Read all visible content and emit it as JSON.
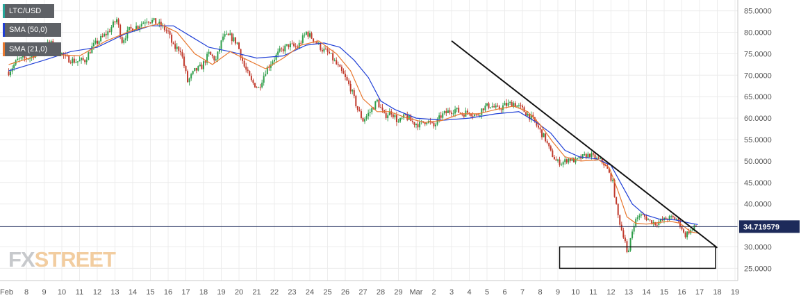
{
  "chart_data": {
    "type": "candlestick",
    "symbol": "LTC/USD",
    "legend": [
      {
        "label": "LTC/USD",
        "color": "#26a69a"
      },
      {
        "label": "SMA (50,0)",
        "color": "#1f3fd6"
      },
      {
        "label": "SMA (21,0)",
        "color": "#e8772e"
      }
    ],
    "y_ticks": [
      "85.0000",
      "80.0000",
      "75.0000",
      "70.0000",
      "65.0000",
      "60.0000",
      "55.0000",
      "50.0000",
      "45.0000",
      "40.0000",
      "30.0000",
      "25.0000"
    ],
    "ylim": [
      22.5,
      87.5
    ],
    "x_ticks": [
      "Feb",
      "8",
      "9",
      "10",
      "11",
      "12",
      "13",
      "14",
      "15",
      "16",
      "17",
      "18",
      "19",
      "20",
      "21",
      "22",
      "23",
      "24",
      "25",
      "26",
      "27",
      "28",
      "29",
      "Mar",
      "2",
      "3",
      "4",
      "5",
      "6",
      "7",
      "8",
      "9",
      "10",
      "11",
      "12",
      "13",
      "14",
      "15",
      "16",
      "17",
      "18",
      "19"
    ],
    "current_price": {
      "label": "34.719579",
      "value": 34.72
    },
    "price_path": [
      [
        0,
        70.8
      ],
      [
        0.5,
        73.5
      ],
      [
        1.2,
        74.2
      ],
      [
        1.8,
        76.0
      ],
      [
        2.3,
        77.5
      ],
      [
        2.7,
        76.5
      ],
      [
        3.2,
        74.0
      ],
      [
        3.8,
        73.2
      ],
      [
        4.3,
        73.5
      ],
      [
        4.7,
        76.5
      ],
      [
        5.2,
        78.5
      ],
      [
        5.6,
        80.0
      ],
      [
        6.1,
        83.0
      ],
      [
        6.4,
        78.0
      ],
      [
        6.8,
        80.5
      ],
      [
        7.3,
        81.5
      ],
      [
        7.8,
        83.0
      ],
      [
        8.2,
        82.5
      ],
      [
        8.6,
        81.5
      ],
      [
        9.0,
        80.0
      ],
      [
        9.3,
        76.5
      ],
      [
        9.7,
        76.0
      ],
      [
        10.1,
        68.5
      ],
      [
        10.5,
        71.0
      ],
      [
        10.9,
        72.0
      ],
      [
        11.3,
        75.0
      ],
      [
        11.7,
        73.5
      ],
      [
        12.1,
        79.0
      ],
      [
        12.5,
        79.0
      ],
      [
        12.9,
        77.5
      ],
      [
        13.3,
        72.0
      ],
      [
        13.7,
        68.5
      ],
      [
        14.1,
        67.0
      ],
      [
        14.5,
        71.0
      ],
      [
        14.9,
        73.5
      ],
      [
        15.3,
        75.5
      ],
      [
        15.8,
        77.0
      ],
      [
        16.3,
        76.5
      ],
      [
        16.8,
        80.0
      ],
      [
        17.3,
        78.0
      ],
      [
        17.7,
        76.0
      ],
      [
        18.1,
        75.0
      ],
      [
        18.5,
        72.5
      ],
      [
        18.9,
        70.0
      ],
      [
        19.3,
        67.0
      ],
      [
        19.7,
        62.0
      ],
      [
        20.0,
        59.5
      ],
      [
        20.4,
        61.5
      ],
      [
        20.8,
        64.0
      ],
      [
        21.2,
        60.5
      ],
      [
        21.6,
        61.5
      ],
      [
        22.0,
        59.0
      ],
      [
        22.4,
        60.5
      ],
      [
        22.8,
        59.0
      ],
      [
        23.2,
        58.5
      ],
      [
        23.6,
        59.5
      ],
      [
        24.0,
        58.0
      ],
      [
        24.4,
        60.5
      ],
      [
        24.8,
        61.5
      ],
      [
        25.2,
        62.0
      ],
      [
        25.6,
        61.0
      ],
      [
        26.0,
        61.5
      ],
      [
        26.4,
        60.5
      ],
      [
        26.8,
        62.5
      ],
      [
        27.2,
        63.0
      ],
      [
        27.6,
        62.0
      ],
      [
        28.0,
        63.0
      ],
      [
        28.5,
        63.5
      ],
      [
        29.0,
        62.0
      ],
      [
        29.4,
        60.5
      ],
      [
        29.7,
        59.0
      ],
      [
        30.0,
        57.0
      ],
      [
        30.3,
        55.0
      ],
      [
        30.6,
        52.0
      ],
      [
        30.9,
        50.0
      ],
      [
        31.2,
        49.5
      ],
      [
        31.6,
        50.5
      ],
      [
        32.0,
        50.0
      ],
      [
        32.4,
        51.0
      ],
      [
        32.8,
        51.5
      ],
      [
        33.2,
        50.5
      ],
      [
        33.5,
        50.0
      ],
      [
        33.8,
        48.0
      ],
      [
        34.1,
        45.0
      ],
      [
        34.35,
        38.0
      ],
      [
        34.6,
        34.0
      ],
      [
        34.8,
        31.5
      ],
      [
        34.95,
        27.0
      ],
      [
        35.1,
        32.0
      ],
      [
        35.3,
        35.5
      ],
      [
        35.6,
        37.5
      ],
      [
        35.9,
        37.0
      ],
      [
        36.2,
        36.0
      ],
      [
        36.5,
        35.5
      ],
      [
        36.8,
        36.0
      ],
      [
        37.1,
        36.5
      ],
      [
        37.4,
        36.8
      ],
      [
        37.7,
        36.5
      ],
      [
        37.95,
        35.0
      ],
      [
        38.15,
        32.5
      ],
      [
        38.35,
        33.5
      ],
      [
        38.6,
        34.0
      ],
      [
        38.85,
        35.2
      ]
    ],
    "sma21_path": [
      [
        0,
        72.5
      ],
      [
        2.0,
        75.0
      ],
      [
        4.0,
        74.5
      ],
      [
        5.5,
        78.0
      ],
      [
        7.0,
        80.5
      ],
      [
        8.5,
        82.0
      ],
      [
        9.5,
        80.0
      ],
      [
        10.5,
        75.0
      ],
      [
        11.5,
        72.5
      ],
      [
        12.5,
        75.5
      ],
      [
        13.5,
        73.5
      ],
      [
        14.5,
        71.5
      ],
      [
        15.5,
        74.0
      ],
      [
        16.5,
        77.0
      ],
      [
        17.5,
        78.0
      ],
      [
        18.5,
        75.0
      ],
      [
        19.3,
        71.0
      ],
      [
        20.0,
        64.5
      ],
      [
        20.8,
        61.5
      ],
      [
        21.5,
        61.5
      ],
      [
        22.5,
        60.0
      ],
      [
        23.5,
        59.0
      ],
      [
        24.5,
        59.5
      ],
      [
        25.5,
        61.0
      ],
      [
        26.5,
        61.0
      ],
      [
        27.5,
        62.0
      ],
      [
        28.5,
        62.8
      ],
      [
        29.3,
        61.5
      ],
      [
        30.0,
        58.5
      ],
      [
        30.7,
        54.5
      ],
      [
        31.4,
        51.0
      ],
      [
        32.3,
        50.0
      ],
      [
        33.3,
        50.3
      ],
      [
        33.9,
        48.5
      ],
      [
        34.4,
        43.0
      ],
      [
        34.9,
        37.0
      ],
      [
        35.4,
        35.5
      ],
      [
        36.0,
        35.3
      ],
      [
        36.6,
        35.6
      ],
      [
        37.3,
        36.0
      ],
      [
        37.9,
        35.5
      ],
      [
        38.5,
        33.5
      ],
      [
        38.9,
        33.2
      ]
    ],
    "sma50_path": [
      [
        0,
        71.0
      ],
      [
        2.0,
        73.5
      ],
      [
        3.5,
        75.5
      ],
      [
        5.0,
        76.5
      ],
      [
        6.5,
        79.5
      ],
      [
        8.0,
        81.5
      ],
      [
        9.3,
        81.5
      ],
      [
        10.3,
        79.0
      ],
      [
        11.3,
        76.5
      ],
      [
        12.5,
        75.5
      ],
      [
        14.0,
        74.0
      ],
      [
        15.5,
        74.5
      ],
      [
        16.8,
        77.0
      ],
      [
        17.8,
        77.5
      ],
      [
        18.7,
        76.5
      ],
      [
        19.5,
        73.5
      ],
      [
        20.3,
        69.5
      ],
      [
        21.0,
        64.0
      ],
      [
        21.8,
        62.0
      ],
      [
        23.0,
        60.0
      ],
      [
        24.5,
        59.5
      ],
      [
        26.0,
        60.0
      ],
      [
        27.5,
        61.0
      ],
      [
        28.8,
        61.5
      ],
      [
        29.8,
        59.0
      ],
      [
        30.6,
        56.5
      ],
      [
        31.4,
        52.5
      ],
      [
        32.2,
        51.0
      ],
      [
        33.2,
        50.5
      ],
      [
        34.0,
        49.0
      ],
      [
        34.6,
        44.5
      ],
      [
        35.2,
        40.0
      ],
      [
        35.9,
        37.5
      ],
      [
        36.7,
        36.5
      ],
      [
        37.6,
        36.3
      ],
      [
        38.4,
        35.6
      ],
      [
        38.9,
        35.2
      ]
    ],
    "trendline": {
      "from": [
        25.0,
        78.0
      ],
      "to": [
        40.0,
        29.8
      ]
    },
    "support_box": {
      "x0": 31.1,
      "x1": 39.9,
      "y0": 25.0,
      "y1": 30.0
    }
  },
  "watermark": {
    "part1": "FX",
    "part2": "STREET"
  }
}
